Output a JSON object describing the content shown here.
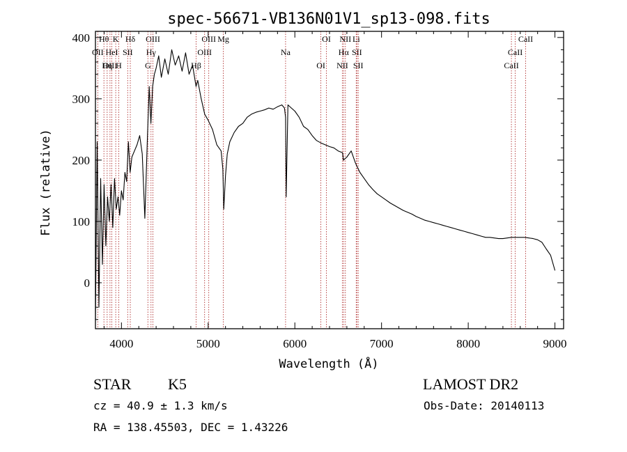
{
  "chart_data": {
    "type": "line",
    "title": "spec-56671-VB136N01V1_sp13-098.fits",
    "xlabel": "Wavelength (Å)",
    "ylabel": "Flux (relative)",
    "xlim": [
      3700,
      9100
    ],
    "ylim": [
      -75,
      410
    ],
    "xticks": [
      "4000",
      "5000",
      "6000",
      "7000",
      "8000",
      "9000"
    ],
    "yticks": [
      "0",
      "100",
      "200",
      "300",
      "400"
    ],
    "series": [
      {
        "x": [
          3700,
          3720,
          3740,
          3760,
          3780,
          3800,
          3820,
          3840,
          3860,
          3880,
          3900,
          3920,
          3940,
          3960,
          3980,
          4000,
          4020,
          4040,
          4060,
          4080,
          4100,
          4120,
          4150,
          4180,
          4210,
          4240,
          4270,
          4300,
          4320,
          4340,
          4360,
          4380,
          4400,
          4430,
          4460,
          4500,
          4540,
          4580,
          4620,
          4660,
          4700,
          4740,
          4780,
          4820,
          4860,
          4880,
          4920,
          4960,
          5000,
          5050,
          5100,
          5150,
          5170,
          5180,
          5200,
          5220,
          5250,
          5300,
          5350,
          5400,
          5450,
          5500,
          5550,
          5600,
          5650,
          5700,
          5750,
          5800,
          5850,
          5880,
          5893,
          5900,
          5920,
          5960,
          6000,
          6050,
          6100,
          6150,
          6200,
          6250,
          6300,
          6350,
          6400,
          6450,
          6500,
          6550,
          6560,
          6600,
          6650,
          6700,
          6750,
          6800,
          6850,
          6900,
          6950,
          7000,
          7050,
          7100,
          7150,
          7200,
          7250,
          7300,
          7350,
          7400,
          7450,
          7500,
          7550,
          7600,
          7650,
          7700,
          7750,
          7800,
          7850,
          7900,
          7950,
          8000,
          8050,
          8100,
          8150,
          8200,
          8250,
          8300,
          8350,
          8400,
          8450,
          8500,
          8550,
          8600,
          8650,
          8700,
          8750,
          8800,
          8850,
          8900,
          8950,
          9000
        ],
        "y": [
          -60,
          230,
          -40,
          170,
          30,
          160,
          60,
          140,
          100,
          160,
          90,
          170,
          120,
          140,
          110,
          150,
          135,
          180,
          165,
          230,
          180,
          205,
          215,
          225,
          240,
          210,
          105,
          240,
          320,
          260,
          320,
          340,
          350,
          370,
          335,
          365,
          340,
          380,
          355,
          370,
          345,
          375,
          340,
          355,
          320,
          330,
          300,
          275,
          265,
          250,
          225,
          215,
          185,
          120,
          175,
          210,
          230,
          245,
          255,
          260,
          270,
          275,
          278,
          280,
          282,
          285,
          283,
          287,
          290,
          285,
          270,
          140,
          290,
          285,
          280,
          270,
          255,
          250,
          240,
          232,
          228,
          225,
          222,
          220,
          215,
          212,
          200,
          205,
          215,
          195,
          180,
          170,
          160,
          152,
          145,
          140,
          135,
          130,
          126,
          122,
          118,
          115,
          112,
          108,
          105,
          102,
          100,
          98,
          96,
          94,
          92,
          90,
          88,
          86,
          84,
          82,
          80,
          78,
          76,
          74,
          74,
          73,
          72,
          72,
          73,
          74,
          74,
          74,
          74,
          73,
          72,
          70,
          66,
          55,
          45,
          20
        ]
      }
    ],
    "line_annotations": [
      {
        "label": "Hθ",
        "x": 3798
      },
      {
        "label": "OII",
        "x": 3727
      },
      {
        "label": "OIII",
        "x": 3868
      },
      {
        "label": "K",
        "x": 3934
      },
      {
        "label": "HeI",
        "x": 3889
      },
      {
        "label": "Hη",
        "x": 3835
      },
      {
        "label": "Hδ",
        "x": 4102
      },
      {
        "label": "SII",
        "x": 4072
      },
      {
        "label": "H",
        "x": 3969
      },
      {
        "label": "OIII",
        "x": 4363
      },
      {
        "label": "Hγ",
        "x": 4341
      },
      {
        "label": "G",
        "x": 4305
      },
      {
        "label": "OIII",
        "x": 5007
      },
      {
        "label": "OIII",
        "x": 4959
      },
      {
        "label": "Hβ",
        "x": 4861
      },
      {
        "label": "Mg",
        "x": 5175
      },
      {
        "label": "Na",
        "x": 5893
      },
      {
        "label": "OI",
        "x": 6300
      },
      {
        "label": "OI",
        "x": 6364
      },
      {
        "label": "Hα",
        "x": 6563
      },
      {
        "label": "NII",
        "x": 6548
      },
      {
        "label": "NII",
        "x": 6583
      },
      {
        "label": "SII",
        "x": 6716
      },
      {
        "label": "SII",
        "x": 6731
      },
      {
        "label": "Li",
        "x": 6708
      },
      {
        "label": "CaII",
        "x": 8542
      },
      {
        "label": "CaII",
        "x": 8498
      },
      {
        "label": "CaII",
        "x": 8662
      }
    ]
  },
  "info": {
    "object_class": "STAR",
    "subclass": "K5",
    "survey": "LAMOST DR2",
    "cz": "cz = 40.9 ± 1.3 km/s",
    "obs_date": "Obs-Date: 20140113",
    "radec": "RA = 138.45503, DEC =   1.43226"
  }
}
